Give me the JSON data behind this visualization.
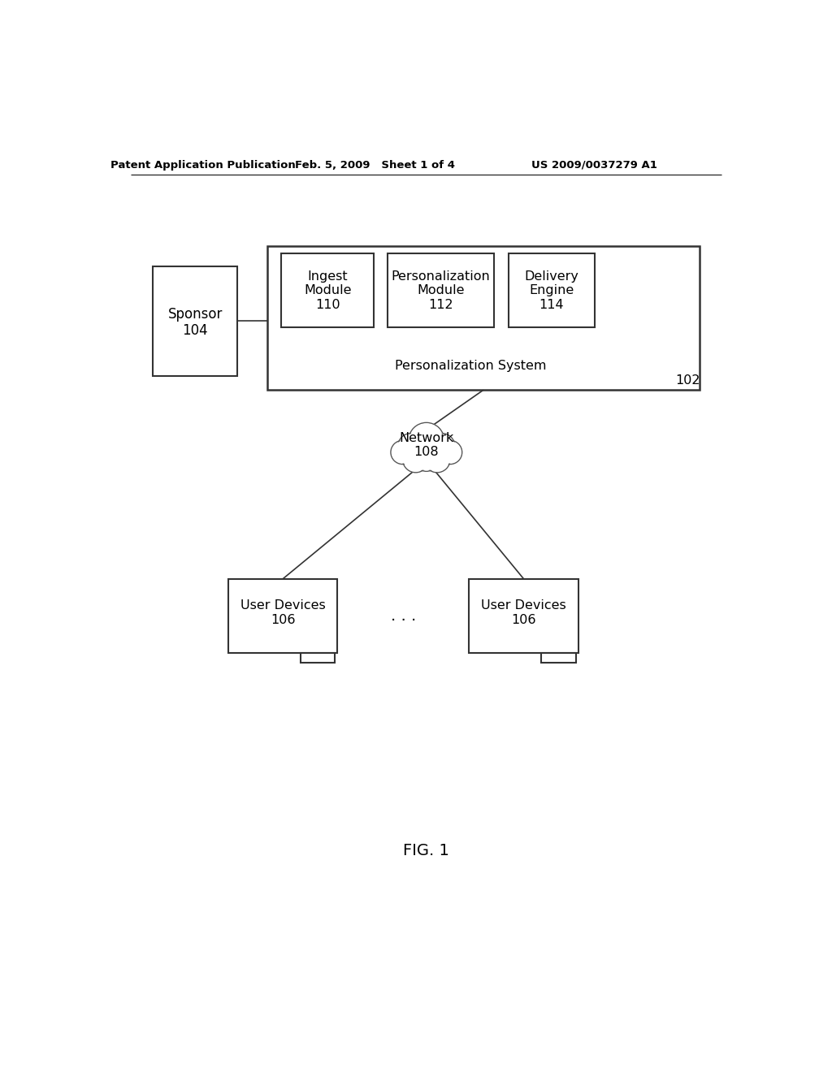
{
  "bg_color": "#ffffff",
  "header_left": "Patent Application Publication",
  "header_mid": "Feb. 5, 2009   Sheet 1 of 4",
  "header_right": "US 2009/0037279 A1",
  "fig_label": "FIG. 1",
  "sponsor_label": "Sponsor\n104",
  "ps_label": "Personalization System",
  "ps_num": "102",
  "ingest_label": "Ingest\nModule\n110",
  "person_mod_label": "Personalization\nModule\n112",
  "delivery_label": "Delivery\nEngine\n114",
  "network_label": "Network\n108",
  "user_dev_label": "User Devices\n106",
  "dots": ". . ."
}
